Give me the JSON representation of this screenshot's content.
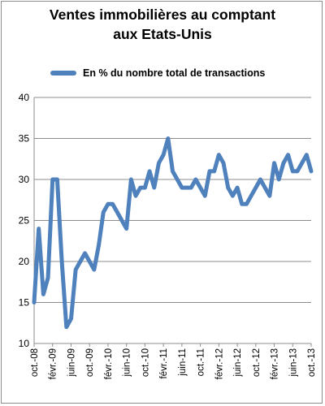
{
  "chart_data": {
    "type": "line",
    "title_line1": "Ventes immobilières au comptant",
    "title_line2": "aux Etats-Unis",
    "xlabel": "",
    "ylabel": "",
    "ylim": [
      10,
      40
    ],
    "yticks": [
      10,
      15,
      20,
      25,
      30,
      35,
      40
    ],
    "x_tick_labels": [
      "oct.-08",
      "févr.-09",
      "juin-09",
      "oct.-09",
      "févr.-10",
      "juin-10",
      "oct.-10",
      "févr.-11",
      "juin-11",
      "oct.-11",
      "févr.-12",
      "juin-12",
      "oct.-12",
      "févr.-13",
      "juin-13",
      "oct.-13"
    ],
    "grid": "horizontal",
    "legend_position": "top",
    "series_color": "#4f81bd",
    "series": [
      {
        "name": "En % du nombre total de transactions",
        "values": [
          15,
          24,
          16,
          18,
          30,
          30,
          20,
          12,
          13,
          19,
          20,
          21,
          20,
          19,
          22,
          26,
          27,
          27,
          26,
          25,
          24,
          30,
          28,
          29,
          29,
          31,
          29,
          32,
          33,
          35,
          31,
          30,
          29,
          29,
          29,
          30,
          29,
          28,
          31,
          31,
          33,
          32,
          29,
          28,
          29,
          27,
          27,
          28,
          29,
          30,
          29,
          28,
          32,
          30,
          32,
          33,
          31,
          31,
          32,
          33,
          31
        ]
      }
    ]
  }
}
